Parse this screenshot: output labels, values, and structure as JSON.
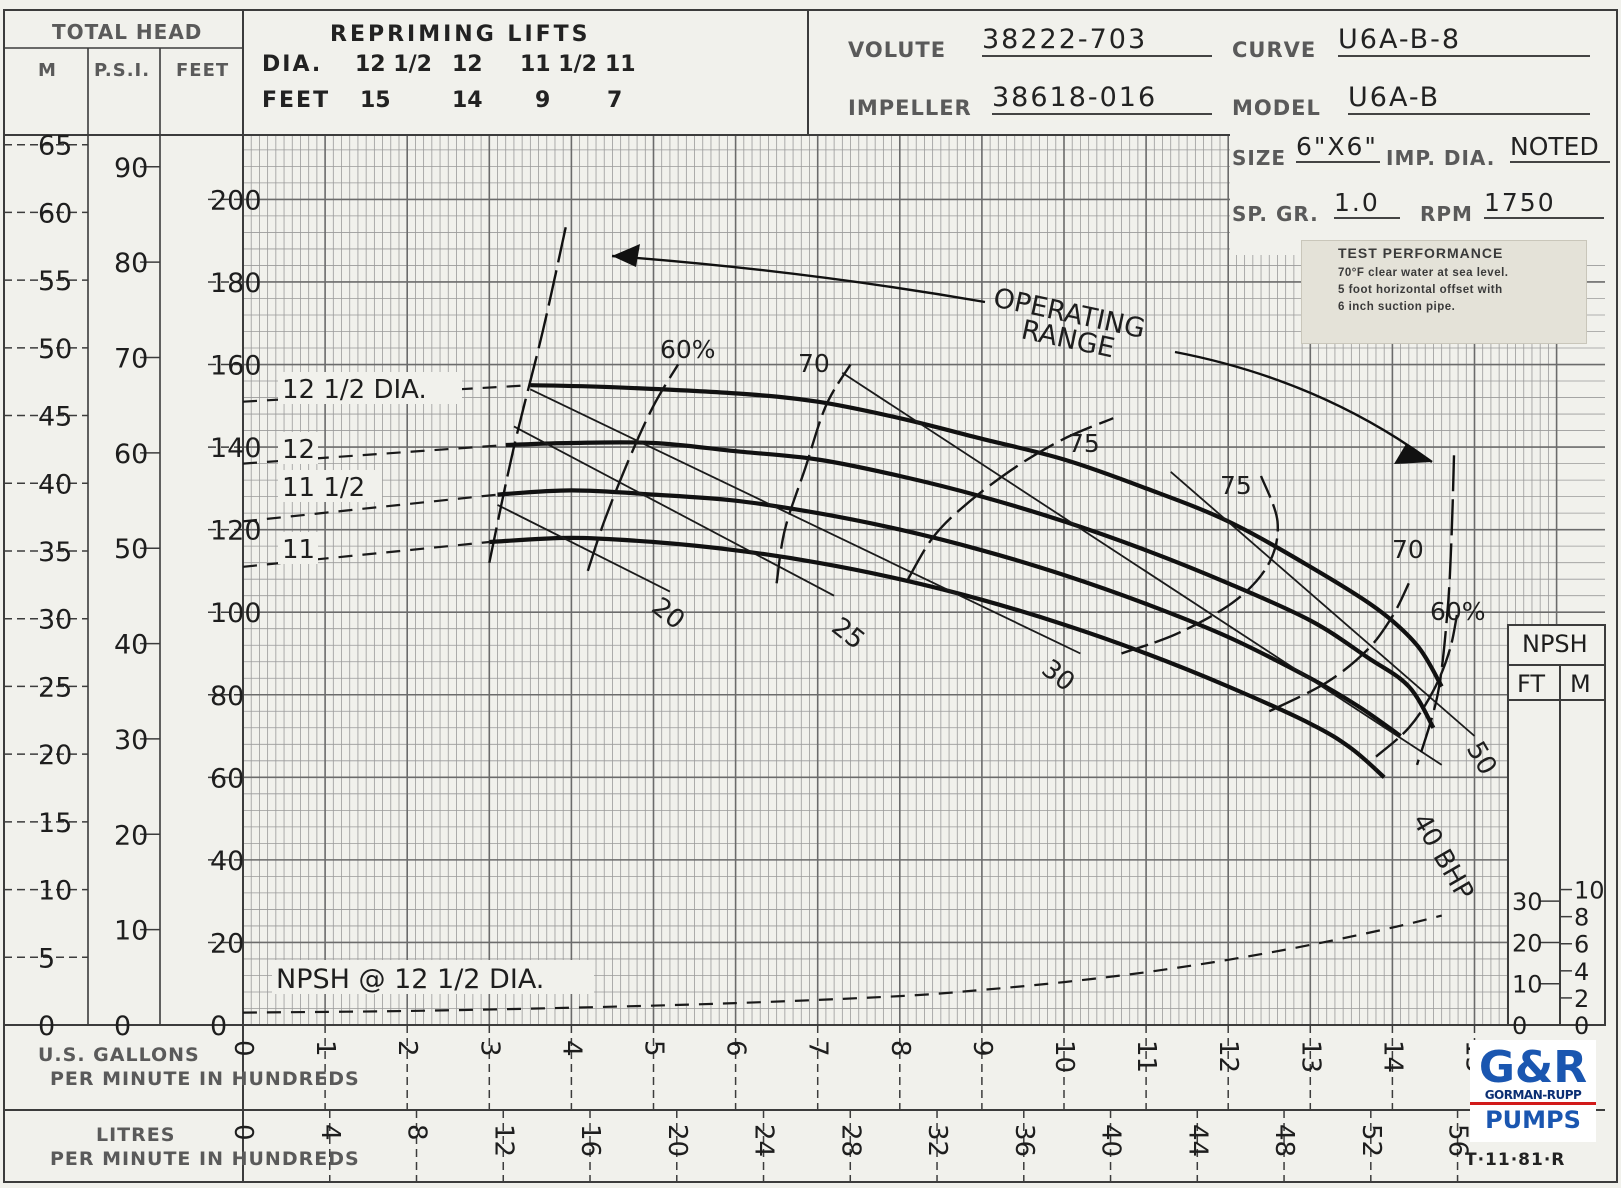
{
  "header": {
    "total_head": "TOTAL HEAD",
    "col_m": "M",
    "col_psi": "P.S.I.",
    "col_feet": "FEET",
    "repriming_title": "REPRIMING LIFTS",
    "dia_row_label": "DIA.",
    "dia_values": [
      "12 1/2",
      "12",
      "11 1/2",
      "11"
    ],
    "feet_row_label": "FEET",
    "feet_values": [
      "15",
      "14",
      "9",
      "7"
    ],
    "volute_label": "VOLUTE",
    "volute_value": "38222-703",
    "curve_label": "CURVE",
    "curve_value": "U6A-B-8",
    "impeller_label": "IMPELLER",
    "impeller_value": "38618-016",
    "model_label": "MODEL",
    "model_value": "U6A-B",
    "size_label": "SIZE",
    "size_value": "6\"X6\"",
    "imp_dia_label": "IMP. DIA.",
    "imp_dia_value": "NOTED",
    "sp_gr_label": "SP. GR.",
    "sp_gr_value": "1.0",
    "rpm_label": "RPM",
    "rpm_value": "1750"
  },
  "test_note": {
    "title": "TEST PERFORMANCE",
    "line1": "70°F clear water at sea level.",
    "line2": "5 foot horizontal offset with",
    "line3": "6 inch suction pipe."
  },
  "footer": {
    "gpm_line1": "U.S. GALLONS",
    "gpm_line2": "PER MINUTE IN HUNDREDS",
    "lpm_line1": "LITRES",
    "lpm_line2": "PER MINUTE IN HUNDREDS",
    "code": "T·11·81·R"
  },
  "logo": {
    "line1": "GORMAN-RUPP",
    "line2": "PUMPS"
  },
  "chart_data": {
    "type": "line",
    "x_unit": "U.S. gallons per minute (hundreds)",
    "y_unit": "total head (feet)",
    "xlim": [
      0,
      15.5
    ],
    "ylim": [
      0,
      215
    ],
    "x_ticks": [
      "0",
      "1",
      "2",
      "3",
      "4",
      "5",
      "6",
      "7",
      "8",
      "9",
      "10",
      "11",
      "12",
      "13",
      "14",
      "15"
    ],
    "y_ticks_feet": [
      "0",
      "20",
      "40",
      "60",
      "80",
      "100",
      "120",
      "140",
      "160",
      "180",
      "200"
    ],
    "m_ticks": [
      "0",
      "5",
      "10",
      "15",
      "20",
      "25",
      "30",
      "35",
      "40",
      "45",
      "50",
      "55",
      "60",
      "65"
    ],
    "psi_ticks": [
      "0",
      "10",
      "20",
      "30",
      "40",
      "50",
      "60",
      "70",
      "80",
      "90"
    ],
    "lpm_ticks": [
      "0",
      "4",
      "8",
      "12",
      "16",
      "20",
      "24",
      "28",
      "32",
      "36",
      "40",
      "44",
      "48",
      "52",
      "56"
    ],
    "npsh_scale": {
      "title": "NPSH",
      "ft_label": "FT",
      "m_label": "M",
      "ft_ticks": [
        "0",
        "10",
        "20",
        "30"
      ],
      "m_ticks": [
        "0",
        "2",
        "4",
        "6",
        "8",
        "10"
      ]
    },
    "head_curves": [
      {
        "name": "12 1/2 DIA.",
        "dashed_label": "12 1/2 DIA.",
        "points": [
          [
            0,
            151
          ],
          [
            3.5,
            155
          ],
          [
            4.5,
            154.5
          ],
          [
            6,
            153
          ],
          [
            7,
            151
          ],
          [
            8,
            147
          ],
          [
            9,
            142
          ],
          [
            10,
            137
          ],
          [
            11,
            130
          ],
          [
            12,
            122
          ],
          [
            13,
            111
          ],
          [
            13.8,
            101
          ],
          [
            14.3,
            92
          ],
          [
            14.6,
            82
          ]
        ]
      },
      {
        "name": "12",
        "dashed_label": "12",
        "points": [
          [
            0,
            136
          ],
          [
            3.2,
            140.5
          ],
          [
            4,
            141
          ],
          [
            5,
            141
          ],
          [
            6,
            139
          ],
          [
            7,
            137
          ],
          [
            8,
            133
          ],
          [
            9,
            128
          ],
          [
            10,
            122
          ],
          [
            11,
            115
          ],
          [
            12,
            107
          ],
          [
            13,
            98
          ],
          [
            13.7,
            89
          ],
          [
            14.2,
            82
          ],
          [
            14.5,
            72
          ]
        ]
      },
      {
        "name": "11 1/2",
        "dashed_label": "11 1/2",
        "points": [
          [
            0,
            122
          ],
          [
            3.1,
            128.5
          ],
          [
            4,
            129.5
          ],
          [
            5,
            128.5
          ],
          [
            6,
            127
          ],
          [
            7,
            124
          ],
          [
            8,
            120
          ],
          [
            9,
            115
          ],
          [
            10,
            109
          ],
          [
            11,
            102
          ],
          [
            12,
            94
          ],
          [
            13,
            84
          ],
          [
            13.6,
            77
          ],
          [
            14.1,
            70
          ]
        ]
      },
      {
        "name": "11",
        "dashed_label": "11",
        "points": [
          [
            0,
            111
          ],
          [
            3,
            117
          ],
          [
            4,
            118
          ],
          [
            5,
            117
          ],
          [
            6,
            115
          ],
          [
            7,
            112
          ],
          [
            8,
            108
          ],
          [
            9,
            103
          ],
          [
            10,
            97
          ],
          [
            11,
            90
          ],
          [
            12,
            82
          ],
          [
            13,
            73
          ],
          [
            13.5,
            67
          ],
          [
            13.9,
            60
          ]
        ]
      }
    ],
    "efficiency_contours": [
      {
        "label": "60%",
        "points": [
          [
            4.2,
            110
          ],
          [
            4.4,
            122
          ],
          [
            4.7,
            137
          ],
          [
            5.0,
            150
          ],
          [
            5.3,
            160
          ]
        ]
      },
      {
        "label": "70",
        "points": [
          [
            6.5,
            107
          ],
          [
            6.6,
            120
          ],
          [
            6.85,
            135
          ],
          [
            7.1,
            150
          ],
          [
            7.4,
            160
          ]
        ]
      },
      {
        "label": "75",
        "points": [
          [
            8.1,
            108
          ],
          [
            8.4,
            118
          ],
          [
            8.8,
            126
          ],
          [
            9.4,
            135
          ],
          [
            10,
            142
          ],
          [
            10.6,
            147
          ]
        ]
      },
      {
        "label": "75",
        "points": [
          [
            10.7,
            90
          ],
          [
            11.4,
            95
          ],
          [
            12.1,
            103
          ],
          [
            12.5,
            112
          ],
          [
            12.6,
            122
          ],
          [
            12.4,
            133
          ]
        ]
      },
      {
        "label": "70",
        "points": [
          [
            12.5,
            76
          ],
          [
            13.2,
            83
          ],
          [
            13.7,
            91
          ],
          [
            14.0,
            99
          ],
          [
            14.2,
            107
          ]
        ]
      },
      {
        "label": "60%",
        "points": [
          [
            13.8,
            65
          ],
          [
            14.2,
            72
          ],
          [
            14.5,
            81
          ],
          [
            14.7,
            91
          ],
          [
            14.8,
            101
          ]
        ]
      }
    ],
    "bhp_lines": [
      {
        "label": "20",
        "points": [
          [
            3.1,
            126
          ],
          [
            5.2,
            105
          ]
        ]
      },
      {
        "label": "25",
        "points": [
          [
            3.3,
            145
          ],
          [
            7.2,
            104
          ]
        ]
      },
      {
        "label": "30",
        "points": [
          [
            3.5,
            154
          ],
          [
            10.2,
            90
          ]
        ]
      },
      {
        "label": "40 BHP",
        "points": [
          [
            7.3,
            158
          ],
          [
            14.6,
            63
          ]
        ]
      },
      {
        "label": "50",
        "points": [
          [
            11.3,
            134
          ],
          [
            15.0,
            70
          ]
        ]
      }
    ],
    "operating_range": {
      "label_line1": "OPERATING",
      "label_line2": "RANGE",
      "min_flow_line": [
        [
          3.0,
          112
        ],
        [
          3.3,
          140
        ],
        [
          3.65,
          168
        ],
        [
          3.95,
          195
        ]
      ],
      "max_flow_line": [
        [
          14.75,
          138
        ],
        [
          14.72,
          118
        ],
        [
          14.67,
          100
        ],
        [
          14.55,
          80
        ],
        [
          14.3,
          63
        ]
      ]
    },
    "npsh_curve": {
      "name": "NPSH @ 12 1/2 DIA.",
      "points_ft": [
        [
          0,
          3
        ],
        [
          2,
          3.4
        ],
        [
          4,
          4.2
        ],
        [
          6,
          5.3
        ],
        [
          8,
          7
        ],
        [
          9,
          8.5
        ],
        [
          10,
          10.4
        ],
        [
          11,
          12.8
        ],
        [
          12,
          15.8
        ],
        [
          13,
          19.4
        ],
        [
          14,
          23.6
        ],
        [
          14.6,
          26.5
        ]
      ]
    }
  }
}
